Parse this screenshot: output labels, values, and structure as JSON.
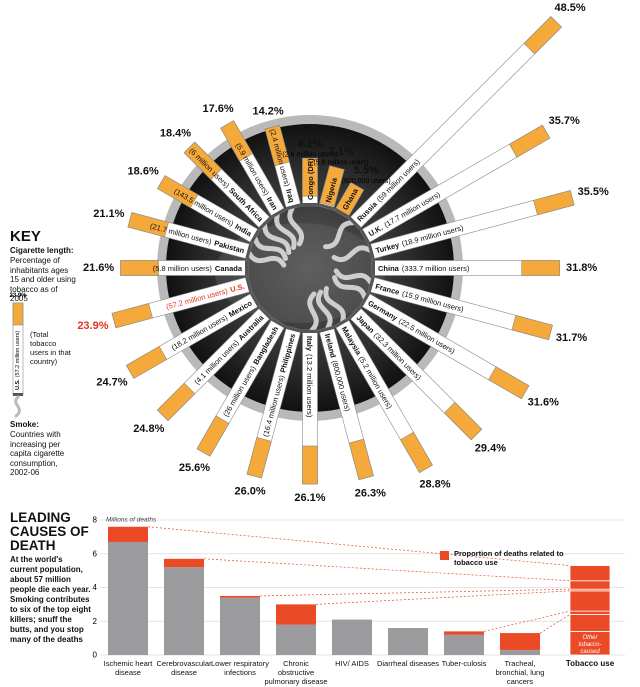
{
  "chart_data": [
    {
      "type": "radial-bar",
      "categories": [
        "Russia",
        "U.K.",
        "Turkey",
        "China",
        "France",
        "Germany",
        "Japan",
        "Malaysia",
        "Ireland",
        "Italy",
        "Philippines",
        "Bangladesh",
        "Australia",
        "Mexico",
        "U.S.",
        "Canada",
        "Pakistan",
        "India",
        "South Africa",
        "Iran",
        "Iraq",
        "Congo (DR)",
        "Nigeria",
        "Ghana"
      ],
      "values": [
        48.5,
        35.7,
        35.5,
        31.8,
        31.7,
        31.6,
        29.4,
        28.8,
        26.3,
        26.1,
        26.0,
        25.6,
        24.8,
        24.7,
        23.9,
        21.6,
        21.1,
        18.6,
        18.4,
        17.6,
        14.2,
        8.1,
        7.1,
        5.5
      ],
      "value_labels": [
        "48.5%",
        "35.7%",
        "35.5%",
        "31.8%",
        "31.7%",
        "31.6%",
        "29.4%",
        "28.8%",
        "26.3%",
        "26.1%",
        "26.0%",
        "25.6%",
        "24.8%",
        "24.7%",
        "23.9%",
        "21.6%",
        "21.1%",
        "18.6%",
        "18.4%",
        "17.6%",
        "14.2%",
        "8.1%",
        "7.1%",
        "5.5%"
      ],
      "users": [
        "(59 million users)",
        "(17.7 million users)",
        "(18.9 million users)",
        "(333.7 million users)",
        "(15.9 million users)",
        "(22.5 million users)",
        "(32.3 million users)",
        "(5.2 million users)",
        "(800,000 users)",
        "(13.2 million users)",
        "(16.4 million users)",
        "(26 million users)",
        "(4.1 million users)",
        "(18.2 million users)",
        "(57.2 million users)",
        "(5.8 million users)",
        "(21.7 million users)",
        "(143.5 million users)",
        "(6 million users)",
        "(5.9 million users)",
        "(2.4 million users)",
        "(2.6 million users)",
        "(5.8 million users)",
        "(800,000 users)"
      ],
      "smoke": [
        true,
        false,
        true,
        false,
        true,
        true,
        false,
        true,
        true,
        true,
        false,
        false,
        false,
        false,
        false,
        false,
        true,
        true,
        true,
        true,
        true,
        false,
        false,
        false
      ],
      "filter_color": "#f4a93a",
      "highlight_category": "U.S.",
      "highlight_color": "#e2361c"
    },
    {
      "type": "bar",
      "stacked": true,
      "y_label": "Millions of deaths",
      "categories": [
        "Ischemic heart disease",
        "Cerebrovascular disease",
        "Lower respiratory infections",
        "Chronic obstructive pulmonary disease",
        "HIV/ AIDS",
        "Diarrheal diseases",
        "Tuber-culosis",
        "Tracheal, bronchial, lung cancers"
      ],
      "series": [
        {
          "color": "#9c9c9e",
          "values": [
            6.7,
            5.2,
            3.4,
            1.8,
            2.1,
            1.6,
            1.2,
            0.3
          ]
        },
        {
          "name": "Proportion of deaths related to tobacco use",
          "color": "#ea4a26",
          "values": [
            0.9,
            0.5,
            0.1,
            1.2,
            0,
            0,
            0.2,
            1.0
          ]
        }
      ],
      "ylim": [
        0,
        8
      ],
      "yticks": [
        0,
        2,
        4,
        6,
        8
      ],
      "grid": true,
      "summary": {
        "label": "Tobacco use",
        "other": 1.4,
        "other_label": "Other tobacco-caused diseases *"
      }
    }
  ],
  "key": {
    "title": "KEY",
    "length_title": "Cigarette length:",
    "length_text": "Percentage of inhabitants ages 15 and older using tobacco as of 2005",
    "users_text": "(Total tobacco users in that country)",
    "smoke_title": "Smoke:",
    "smoke_text": "Countries with increasing per capita cigarette consumption, 2002-06"
  },
  "leading_causes": {
    "title": "LEADING CAUSES OF DEATH",
    "text": "At the world's current population, about 57 million people die each year. Smoking contributes to six of the top eight killers; snuff the butts, and you stop many of the deaths"
  }
}
